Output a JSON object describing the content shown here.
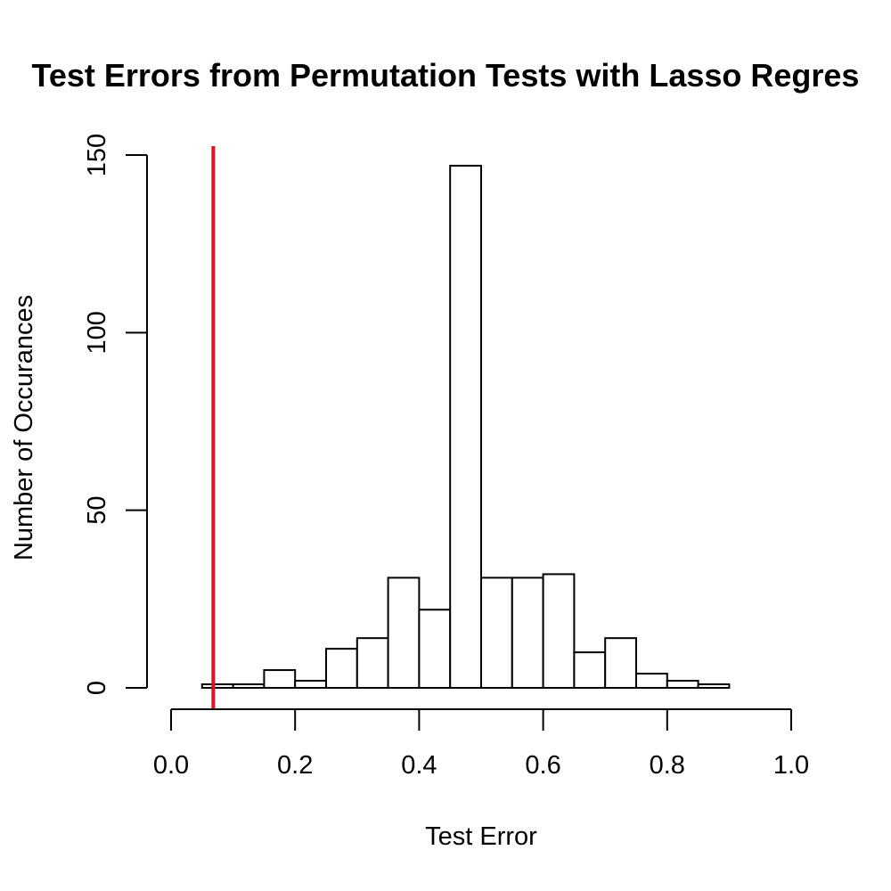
{
  "chart_data": {
    "type": "bar",
    "title": "Test Errors from Permutation Tests with Lasso Regres",
    "xlabel": "Test Error",
    "ylabel": "Number of Occurances",
    "bin_edges": [
      0.0,
      0.05,
      0.1,
      0.15,
      0.2,
      0.25,
      0.3,
      0.35,
      0.4,
      0.45,
      0.5,
      0.55,
      0.6,
      0.65,
      0.7,
      0.75,
      0.8,
      0.85,
      0.9,
      0.95,
      1.0
    ],
    "values": [
      0,
      1,
      1,
      5,
      2,
      11,
      14,
      31,
      22,
      147,
      31,
      31,
      32,
      10,
      14,
      4,
      2,
      1,
      0,
      0
    ],
    "xlim": [
      0.0,
      1.0
    ],
    "ylim": [
      0,
      150
    ],
    "x_ticks": [
      0.0,
      0.2,
      0.4,
      0.6,
      0.8,
      1.0
    ],
    "x_tick_labels": [
      "0.0",
      "0.2",
      "0.4",
      "0.6",
      "0.8",
      "1.0"
    ],
    "y_ticks": [
      0,
      50,
      100,
      150
    ],
    "y_tick_labels": [
      "0",
      "50",
      "100",
      "150"
    ],
    "reference_line": {
      "x": 0.068,
      "color": "#e8101c"
    },
    "bar_fill": "#ffffff",
    "bar_stroke": "#000000",
    "grid": false
  }
}
